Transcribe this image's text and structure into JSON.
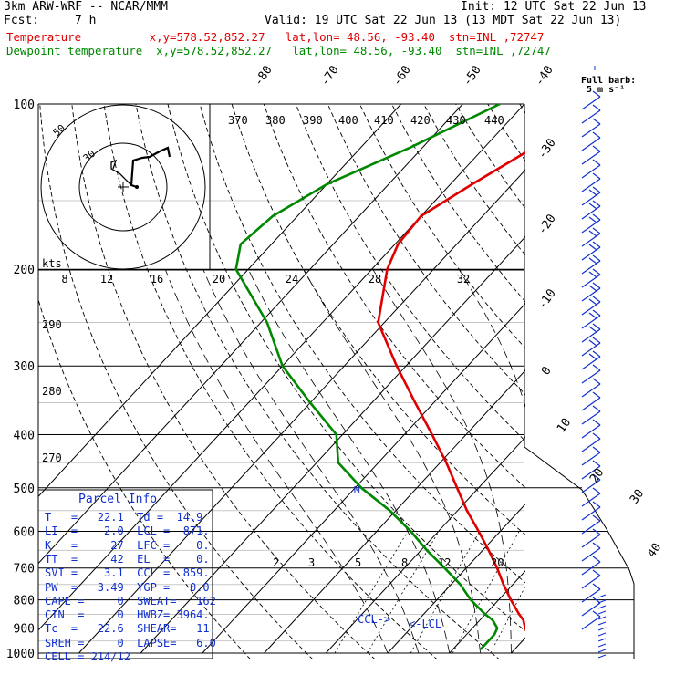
{
  "header": {
    "title": "3km ARW-WRF -- NCAR/MMM",
    "init": "Init: 12 UTC Sat 22 Jun 13",
    "fcst_label": "Fcst:",
    "fcst_value": "7 h",
    "valid": "Valid: 19 UTC Sat 22 Jun 13 (13 MDT Sat 22 Jun 13)",
    "temp_line": "Temperature          x,y=578.52,852.27   lat,lon= 48.56, -93.40  stn=INL ,72747",
    "dew_line": "Dewpoint temperature  x,y=578.52,852.27   lat,lon= 48.56, -93.40  stn=INL ,72747"
  },
  "barb_key": {
    "line1": "Full barb:",
    "line2": "5 m s⁻¹"
  },
  "hodograph": {
    "unit": "kts",
    "ring_labels": [
      "50",
      "30"
    ],
    "mixing_labels": [
      "8",
      "12",
      "16",
      "20",
      "24",
      "28",
      "32"
    ]
  },
  "parcel_info": {
    "title": "Parcel Info",
    "rows": [
      "T   =   22.1  Td =  14.9",
      "LI  =    2.0  LCL =  871.",
      "K   =     27  LFC =    0.",
      "TT  =     42  EL  =    0.",
      "SVI =    3.1  CCL =  859.",
      "PW  =   3.49  YGP =   0.0",
      "CAPE =     0  SWEAT=   162",
      "CIN  =     0  HWBZ= 3964.",
      "Tc  =   22.6  SHEAR=   11.",
      "SREH =     0  LAPSE=   6.0",
      "CELL = 214/12"
    ]
  },
  "annotations": {
    "ccl": "CCL->",
    "lcl": "<-LCL",
    "marker": "M"
  },
  "colors": {
    "temperature": "#e00000",
    "dewpoint": "#008800",
    "parcel_info": "#1030d0",
    "barbs": "#1030d0"
  },
  "chart_data": {
    "type": "line",
    "subtype": "skew-T log-p diagram",
    "y_axis": {
      "label": "",
      "scale": "log",
      "ticks": [
        100,
        200,
        300,
        400,
        500,
        600,
        700,
        800,
        900,
        1000
      ],
      "range": [
        1000,
        100
      ]
    },
    "isotherm_labels": [
      "-80",
      "-70",
      "-60",
      "-50",
      "-40",
      "-30",
      "-20",
      "-10",
      "0",
      "10",
      "20",
      "30",
      "40"
    ],
    "isotherm_values": [
      -80,
      -70,
      -60,
      -50,
      -40,
      -30,
      -20,
      -10,
      0,
      10,
      20,
      30,
      40
    ],
    "theta_labels": [
      "370",
      "380",
      "390",
      "400",
      "410",
      "420",
      "430",
      "440",
      "290",
      "280",
      "270"
    ],
    "mixing_ratio_labels": [
      "2",
      "3",
      "5",
      "8",
      "12",
      "20"
    ],
    "series": [
      {
        "name": "Temperature",
        "color": "#e00000",
        "pressure": [
          985,
          955,
          925,
          900,
          870,
          850,
          800,
          750,
          700,
          650,
          600,
          550,
          500,
          450,
          400,
          350,
          300,
          250,
          200,
          180,
          160,
          140,
          120,
          100
        ],
        "value": [
          23.5,
          22.0,
          20.0,
          18.5,
          17.0,
          15.5,
          12.0,
          8.5,
          5.0,
          1.0,
          -3.5,
          -8.5,
          -13.5,
          -19.0,
          -25.5,
          -33.0,
          -41.5,
          -51.0,
          -57.5,
          -59.5,
          -60.0,
          -56.5,
          -52.0,
          -47.5
        ]
      },
      {
        "name": "Dewpoint temperature",
        "color": "#008800",
        "pressure": [
          985,
          955,
          925,
          900,
          870,
          850,
          800,
          750,
          700,
          650,
          600,
          550,
          500,
          450,
          400,
          350,
          300,
          250,
          200,
          180,
          160,
          140,
          120,
          100
        ],
        "value": [
          14.5,
          14.5,
          14.5,
          14.0,
          12.0,
          10.0,
          5.5,
          1.5,
          -3.5,
          -9.0,
          -14.5,
          -21.0,
          -29.0,
          -36.5,
          -41.0,
          -50.0,
          -60.0,
          -69.0,
          -82.0,
          -85.0,
          -84.0,
          -80.0,
          -72.0,
          -64.0
        ]
      }
    ]
  }
}
